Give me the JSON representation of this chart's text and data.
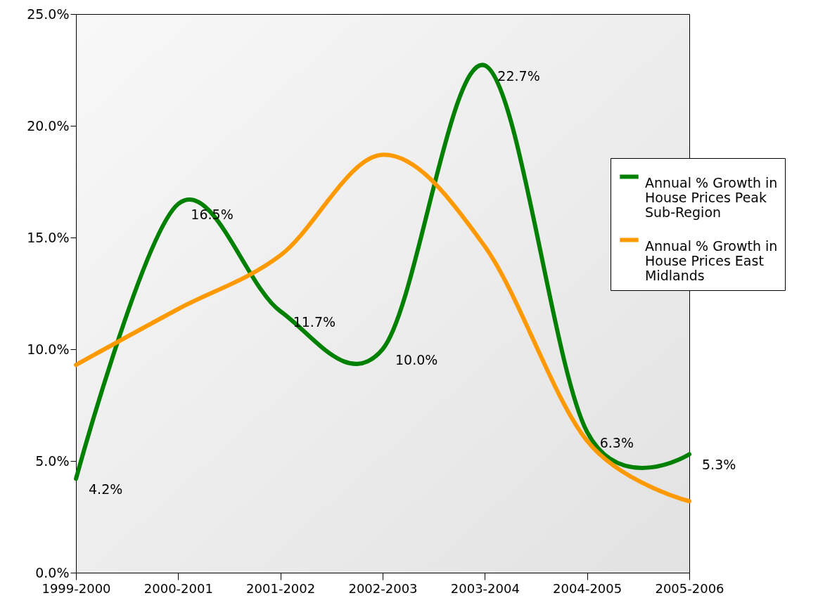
{
  "chart_data": {
    "type": "line",
    "categories": [
      "1999-2000",
      "2000-2001",
      "2001-2002",
      "2002-2003",
      "2003-2004",
      "2004-2005",
      "2005-2006"
    ],
    "ylim": [
      0,
      25
    ],
    "yticks": [
      {
        "value": 0,
        "label": "0.0%"
      },
      {
        "value": 5,
        "label": "5.0%"
      },
      {
        "value": 10,
        "label": "10.0%"
      },
      {
        "value": 15,
        "label": "15.0%"
      },
      {
        "value": 20,
        "label": "20.0%"
      },
      {
        "value": 25,
        "label": "25.0%"
      }
    ],
    "grid": false,
    "legend": "right",
    "marker": "none",
    "line_style": "solid",
    "series": [
      {
        "name": "Annual % Growth in House Prices Peak Sub-Region",
        "color": "#008000",
        "values": [
          4.2,
          16.5,
          11.7,
          10.0,
          22.7,
          6.3,
          5.3
        ],
        "value_labels": [
          "4.2%",
          "16.5%",
          "11.7%",
          "10.0%",
          "22.7%",
          "6.3%",
          "5.3%"
        ]
      },
      {
        "name": "Annual % Growth in House Prices East Midlands",
        "color": "#ff9900",
        "values": [
          9.3,
          11.8,
          14.2,
          18.7,
          14.6,
          5.9,
          3.2
        ]
      }
    ]
  }
}
